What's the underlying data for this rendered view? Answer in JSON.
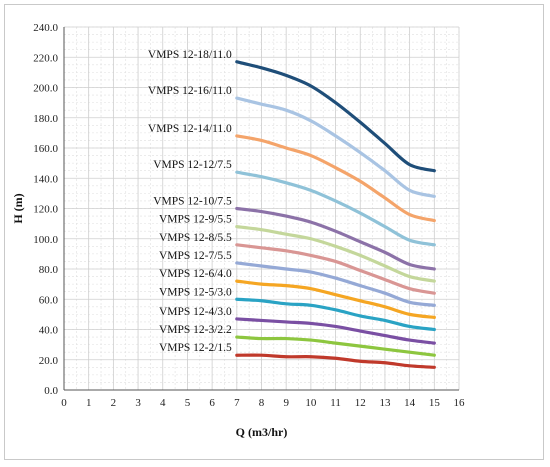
{
  "chart_data": {
    "type": "line",
    "title": "",
    "xlabel": "Q (m3/hr)",
    "ylabel": "H (m)",
    "xlim": [
      0,
      16
    ],
    "ylim": [
      0,
      240
    ],
    "x_ticks": [
      "0",
      "1",
      "2",
      "3",
      "4",
      "5",
      "6",
      "7",
      "8",
      "9",
      "10",
      "11",
      "12",
      "13",
      "14",
      "15",
      "16"
    ],
    "y_ticks": [
      "0.0",
      "20.0",
      "40.0",
      "60.0",
      "80.0",
      "100.0",
      "120.0",
      "140.0",
      "160.0",
      "180.0",
      "200.0",
      "220.0",
      "240.0"
    ],
    "grid": true,
    "x": [
      7,
      8,
      9,
      10,
      11,
      12,
      13,
      14,
      15
    ],
    "series": [
      {
        "name": "VMPS 12-18/11.0",
        "color": "#1f4e79",
        "values": [
          217,
          213,
          208,
          201,
          190,
          177,
          163,
          149,
          145
        ]
      },
      {
        "name": "VMPS 12-16/11.0",
        "color": "#a9c4e3",
        "values": [
          193,
          189,
          185,
          178,
          168,
          157,
          145,
          132,
          128
        ]
      },
      {
        "name": "VMPS 12-14/11.0",
        "color": "#f4a46a",
        "values": [
          168,
          165,
          160,
          155,
          147,
          138,
          127,
          116,
          112
        ]
      },
      {
        "name": "VMPS 12-12/7.5",
        "color": "#8fc2d8",
        "values": [
          144,
          141,
          137,
          132,
          125,
          117,
          108,
          99,
          96
        ]
      },
      {
        "name": "VMPS 12-10/7.5",
        "color": "#8c72a8",
        "values": [
          120,
          118,
          115,
          111,
          105,
          98,
          91,
          83,
          80
        ]
      },
      {
        "name": "VMPS 12-9/5.5",
        "color": "#c4d79b",
        "values": [
          108,
          106,
          103,
          100,
          95,
          89,
          82,
          75,
          72
        ]
      },
      {
        "name": "VMPS 12-8/5.5",
        "color": "#d99694",
        "values": [
          96,
          94,
          92,
          89,
          85,
          79,
          73,
          67,
          64
        ]
      },
      {
        "name": "VMPS 12-7/5.5",
        "color": "#95a9d6",
        "values": [
          84,
          82,
          80,
          78,
          74,
          69,
          64,
          58,
          56
        ]
      },
      {
        "name": "VMPS 12-6/4.0",
        "color": "#f5a623",
        "values": [
          72,
          70,
          69,
          67,
          63,
          59,
          55,
          50,
          48
        ]
      },
      {
        "name": "VMPS 12-5/3.0",
        "color": "#2aa3c4",
        "values": [
          60,
          59,
          57,
          56,
          53,
          49,
          46,
          42,
          40
        ]
      },
      {
        "name": "VMPS 12-4/3.0",
        "color": "#7a4fa3",
        "values": [
          47,
          46,
          45,
          44,
          42,
          39,
          36,
          33,
          31
        ]
      },
      {
        "name": "VMPS 12-3/2.2",
        "color": "#8dc63f",
        "values": [
          35,
          34,
          34,
          33,
          31,
          29,
          27,
          25,
          23
        ]
      },
      {
        "name": "VMPS 12-2/1.5",
        "color": "#c0392b",
        "values": [
          23,
          23,
          22,
          22,
          21,
          19,
          18,
          16,
          15
        ]
      }
    ]
  }
}
